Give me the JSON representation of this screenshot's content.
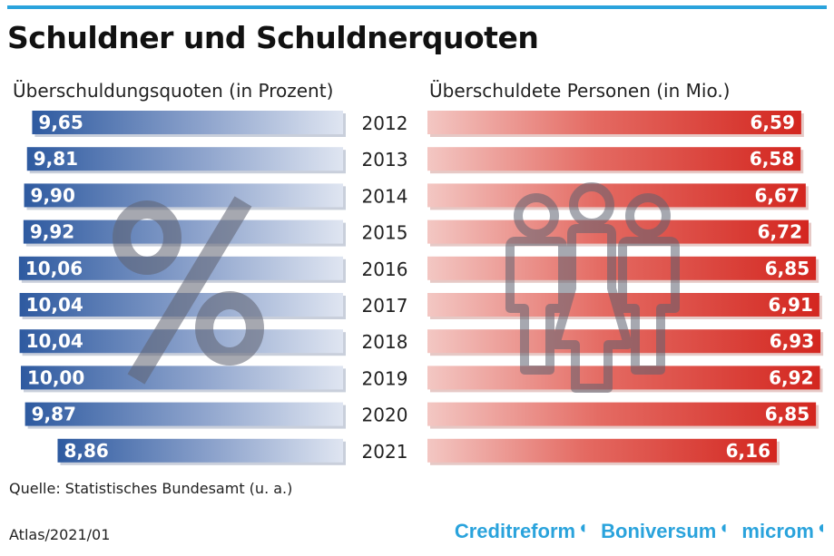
{
  "title": "Schuldner und Schuldnerquoten",
  "left_subtitle": "Überschuldungsquoten (in Prozent)",
  "right_subtitle": "Überschuldete Personen (in Mio.)",
  "source": "Quelle: Statistisches Bundesamt (u. a.)",
  "atlas": "Atlas/2021/01",
  "logos": [
    "Creditreform",
    "Boniversum",
    "microm"
  ],
  "logo_mark_icon": "crescent-c-icon",
  "colors": {
    "blue": "#2e5aa0",
    "red": "#d93a30",
    "accent": "#2aa3dc"
  },
  "chart_data": [
    {
      "type": "bar",
      "orientation": "horizontal-leftward",
      "categories": [
        "2012",
        "2013",
        "2014",
        "2015",
        "2016",
        "2017",
        "2018",
        "2019",
        "2020",
        "2021"
      ],
      "values": [
        9.65,
        9.81,
        9.9,
        9.92,
        10.06,
        10.04,
        10.04,
        10.0,
        9.87,
        8.86
      ],
      "labels": [
        "9,65",
        "9,81",
        "9,90",
        "9,92",
        "10,06",
        "10,04",
        "10,04",
        "10,00",
        "9,87",
        "8,86"
      ],
      "title": "Überschuldungsquoten (in Prozent)",
      "background_icon": "percent-icon",
      "color": "#2e5aa0"
    },
    {
      "type": "bar",
      "orientation": "horizontal",
      "categories": [
        "2012",
        "2013",
        "2014",
        "2015",
        "2016",
        "2017",
        "2018",
        "2019",
        "2020",
        "2021"
      ],
      "values": [
        6.59,
        6.58,
        6.67,
        6.72,
        6.85,
        6.91,
        6.93,
        6.92,
        6.85,
        6.16
      ],
      "labels": [
        "6,59",
        "6,58",
        "6,67",
        "6,72",
        "6,85",
        "6,91",
        "6,93",
        "6,92",
        "6,85",
        "6,16"
      ],
      "title": "Überschuldete Personen (in Mio.)",
      "background_icon": "people-icon",
      "color": "#d93a30"
    }
  ]
}
